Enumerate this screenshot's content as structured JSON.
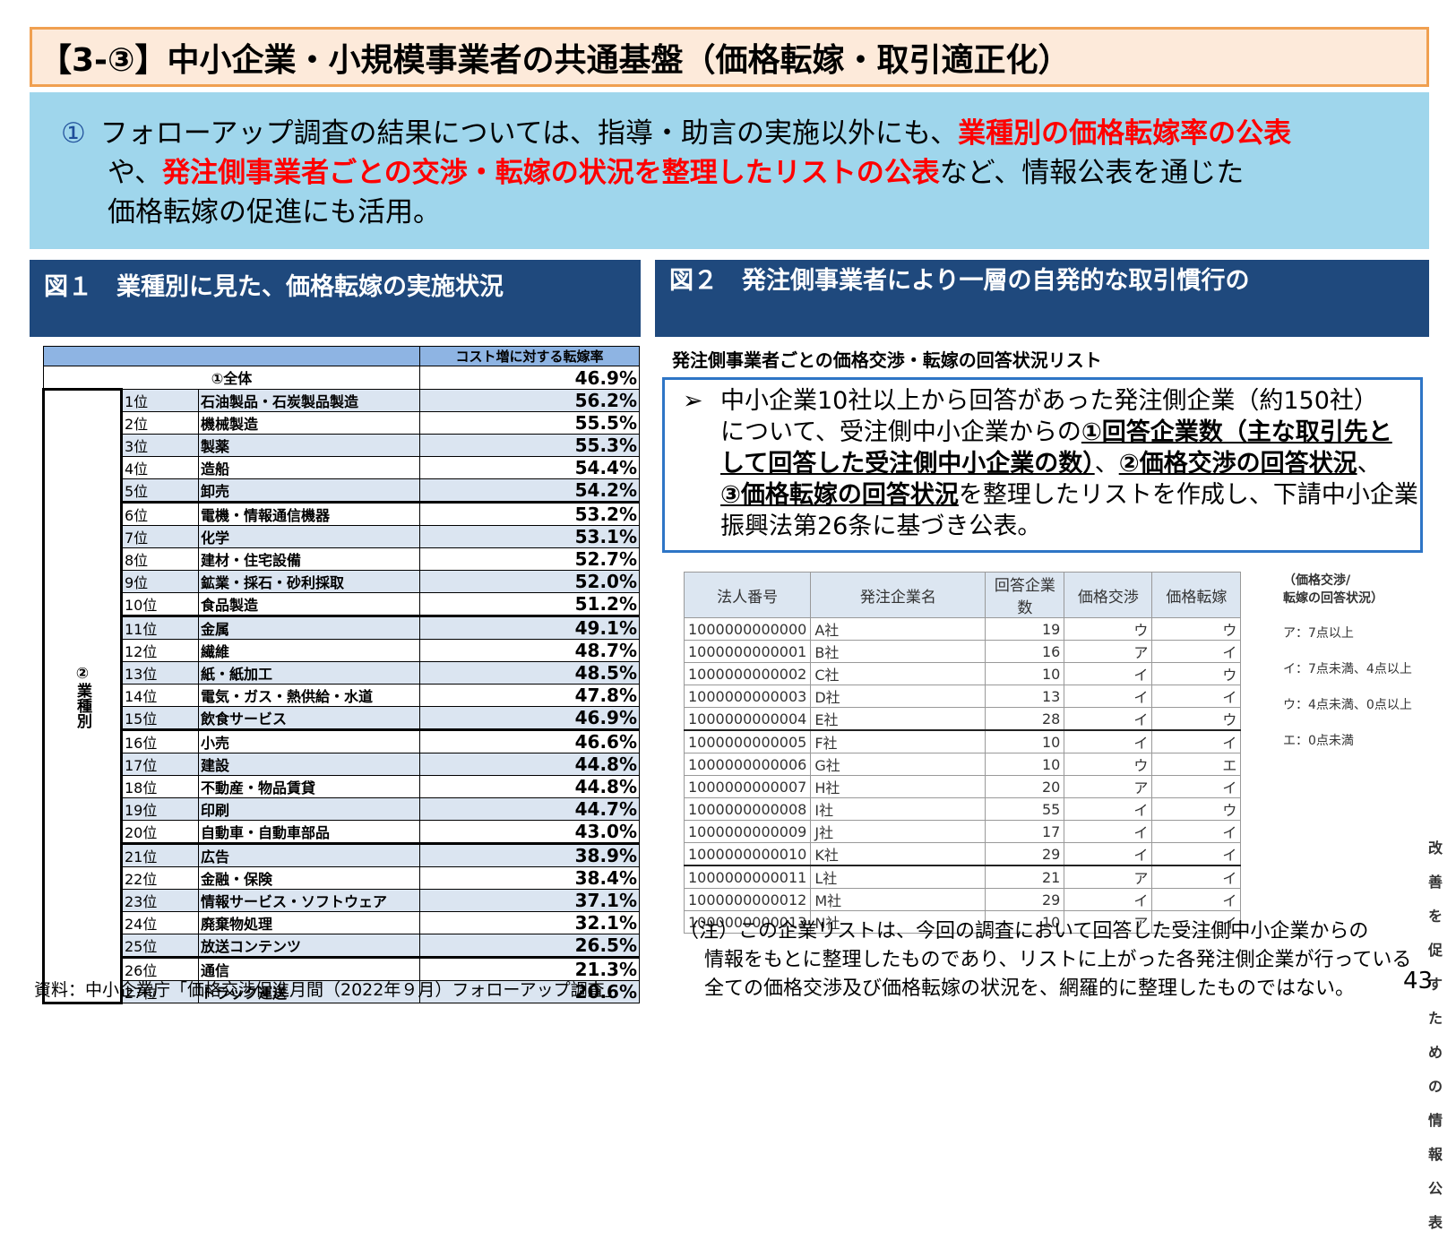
{
  "title": "【3-③】中小企業・小規模事業者の共通基盤（価格転嫁・取引適正化）",
  "summary": {
    "number": "①",
    "line1_a": "フォローアップ調査の結果については、指導・助言の実施以外にも、",
    "line1_red": "業種別の価格転嫁率の公表",
    "line2_a": "や、",
    "line2_red": "発注側事業者ごとの交渉・転嫁の状況を整理したリストの公表",
    "line2_b": "など、情報公表を通じた",
    "line3": "価格転嫁の促進にも活用。",
    "red_color": "#ff0000"
  },
  "fig1": {
    "heading": "図１　業種別に見た、価格転嫁の実施状況",
    "column_header": "コスト増に対する転嫁率",
    "overall_label": "①全体",
    "overall_value": "46.9%",
    "side_label": "②業種別",
    "rows": [
      {
        "rank": "1位",
        "industry": "石油製品・石炭製品製造",
        "rate": "56.2%"
      },
      {
        "rank": "2位",
        "industry": "機械製造",
        "rate": "55.5%"
      },
      {
        "rank": "3位",
        "industry": "製薬",
        "rate": "55.3%"
      },
      {
        "rank": "4位",
        "industry": "造船",
        "rate": "54.4%"
      },
      {
        "rank": "5位",
        "industry": "卸売",
        "rate": "54.2%"
      },
      {
        "rank": "6位",
        "industry": "電機・情報通信機器",
        "rate": "53.2%"
      },
      {
        "rank": "7位",
        "industry": "化学",
        "rate": "53.1%"
      },
      {
        "rank": "8位",
        "industry": "建材・住宅設備",
        "rate": "52.7%"
      },
      {
        "rank": "9位",
        "industry": "鉱業・採石・砂利採取",
        "rate": "52.0%"
      },
      {
        "rank": "10位",
        "industry": "食品製造",
        "rate": "51.2%"
      },
      {
        "rank": "11位",
        "industry": "金属",
        "rate": "49.1%"
      },
      {
        "rank": "12位",
        "industry": "繊維",
        "rate": "48.7%"
      },
      {
        "rank": "13位",
        "industry": "紙・紙加工",
        "rate": "48.5%"
      },
      {
        "rank": "14位",
        "industry": "電気・ガス・熱供給・水道",
        "rate": "47.8%"
      },
      {
        "rank": "15位",
        "industry": "飲食サービス",
        "rate": "46.9%"
      },
      {
        "rank": "16位",
        "industry": "小売",
        "rate": "46.6%"
      },
      {
        "rank": "17位",
        "industry": "建設",
        "rate": "44.8%"
      },
      {
        "rank": "18位",
        "industry": "不動産・物品賃貸",
        "rate": "44.8%"
      },
      {
        "rank": "19位",
        "industry": "印刷",
        "rate": "44.7%"
      },
      {
        "rank": "20位",
        "industry": "自動車・自動車部品",
        "rate": "43.0%"
      },
      {
        "rank": "21位",
        "industry": "広告",
        "rate": "38.9%"
      },
      {
        "rank": "22位",
        "industry": "金融・保険",
        "rate": "38.4%"
      },
      {
        "rank": "23位",
        "industry": "情報サービス・ソフトウェア",
        "rate": "37.1%"
      },
      {
        "rank": "24位",
        "industry": "廃棄物処理",
        "rate": "32.1%"
      },
      {
        "rank": "25位",
        "industry": "放送コンテンツ",
        "rate": "26.5%"
      },
      {
        "rank": "26位",
        "industry": "通信",
        "rate": "21.3%"
      },
      {
        "rank": "27位",
        "industry": "トラック運送",
        "rate": "20.6%"
      }
    ],
    "source": "資料：中小企業庁「価格交渉促進月間（2022年９月）フォローアップ調査」"
  },
  "fig2": {
    "heading_line1": "図２　発注側事業者により一層の自発的な取引慣行の",
    "heading_line2": "改善を促すための情報公表",
    "list_title": "発注側事業者ごとの価格交渉・転嫁の回答状況リスト",
    "box": {
      "arrow": "➢",
      "line1": "中小企業10社以上から回答があった発注側企業（約150社）",
      "line2_a": "について、受注側中小企業からの",
      "line2_u": "①回答企業数（主な取引先と",
      "line3_u": "して回答した受注側中小企業の数）",
      "line3_b": "、",
      "line3_u2": "②価格交渉の回答状況",
      "line3_c": "、",
      "line4_u": "③価格転嫁の回答状況",
      "line4_b": "を整理したリストを作成し、下請中小企業",
      "line5": "振興法第26条に基づき公表。"
    },
    "table": {
      "headers": [
        "法人番号",
        "発注企業名",
        "回答企業数",
        "価格交渉",
        "価格転嫁"
      ],
      "rows": [
        [
          "1000000000000",
          "A社",
          "19",
          "ウ",
          "ウ"
        ],
        [
          "1000000000001",
          "B社",
          "16",
          "ア",
          "イ"
        ],
        [
          "1000000000002",
          "C社",
          "10",
          "イ",
          "ウ"
        ],
        [
          "1000000000003",
          "D社",
          "13",
          "イ",
          "イ"
        ],
        [
          "1000000000004",
          "E社",
          "28",
          "イ",
          "ウ"
        ],
        [
          "1000000000005",
          "F社",
          "10",
          "イ",
          "イ"
        ],
        [
          "1000000000006",
          "G社",
          "10",
          "ウ",
          "エ"
        ],
        [
          "1000000000007",
          "H社",
          "20",
          "ア",
          "イ"
        ],
        [
          "1000000000008",
          "I社",
          "55",
          "イ",
          "ウ"
        ],
        [
          "1000000000009",
          "J社",
          "17",
          "イ",
          "イ"
        ],
        [
          "1000000000010",
          "K社",
          "29",
          "イ",
          "イ"
        ],
        [
          "1000000000011",
          "L社",
          "21",
          "ア",
          "イ"
        ],
        [
          "1000000000012",
          "M社",
          "29",
          "イ",
          "イ"
        ],
        [
          "1000000000013",
          "N社",
          "10",
          "ア",
          "イ"
        ]
      ]
    },
    "legend": {
      "title_line1": "（価格交渉/",
      "title_line2": "転嫁の回答状況）",
      "items": [
        "ア：7点以上",
        "イ：7点未満、4点以上",
        "ウ：4点未満、0点以上",
        "エ：0点未満"
      ]
    },
    "note_line1": "（注）この企業リストは、今回の調査において回答した受注側中小企業からの",
    "note_line2": "情報をもとに整理したものであり、リストに上がった各発注側企業が行っている",
    "note_line3": "全ての価格交渉及び価格転嫁の状況を、網羅的に整理したものではない。"
  },
  "page_number": "43"
}
